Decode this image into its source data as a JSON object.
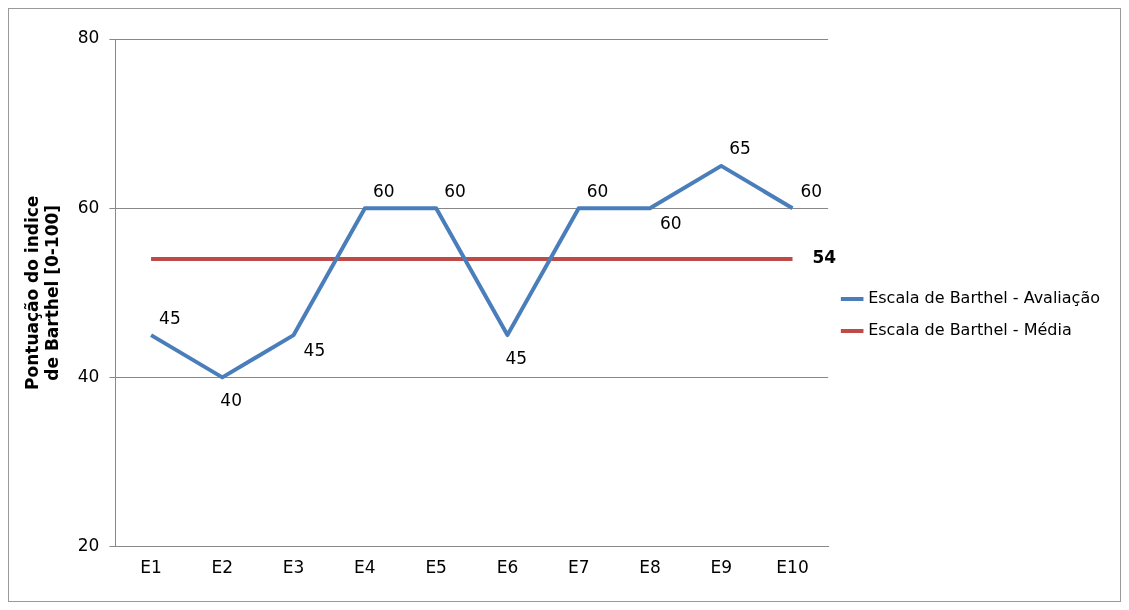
{
  "chart_data": {
    "type": "line",
    "ylabel": "Pontuação do indice\nde Barthel [0-100]",
    "categories": [
      "E1",
      "E2",
      "E3",
      "E4",
      "E5",
      "E6",
      "E7",
      "E8",
      "E9",
      "E10"
    ],
    "series": [
      {
        "name": "Escala de Barthel - Avaliação",
        "color": "#4a7ebb",
        "values": [
          45,
          40,
          45,
          60,
          60,
          45,
          60,
          60,
          65,
          60
        ],
        "value_labels": [
          "45",
          "40",
          "45",
          "60",
          "60",
          "45",
          "60",
          "60",
          "65",
          "60"
        ]
      },
      {
        "name": "Escala de Barthel - Média",
        "color": "#be4b48",
        "values": [
          54,
          54,
          54,
          54,
          54,
          54,
          54,
          54,
          54,
          54
        ],
        "value_labels": [
          null,
          null,
          null,
          null,
          null,
          null,
          null,
          null,
          null,
          "54"
        ]
      }
    ],
    "ylim": [
      20,
      80
    ],
    "yticks": [
      20,
      40,
      60,
      80
    ],
    "grid": "y",
    "legend": "right",
    "marker": "none",
    "line_style": "solid"
  }
}
